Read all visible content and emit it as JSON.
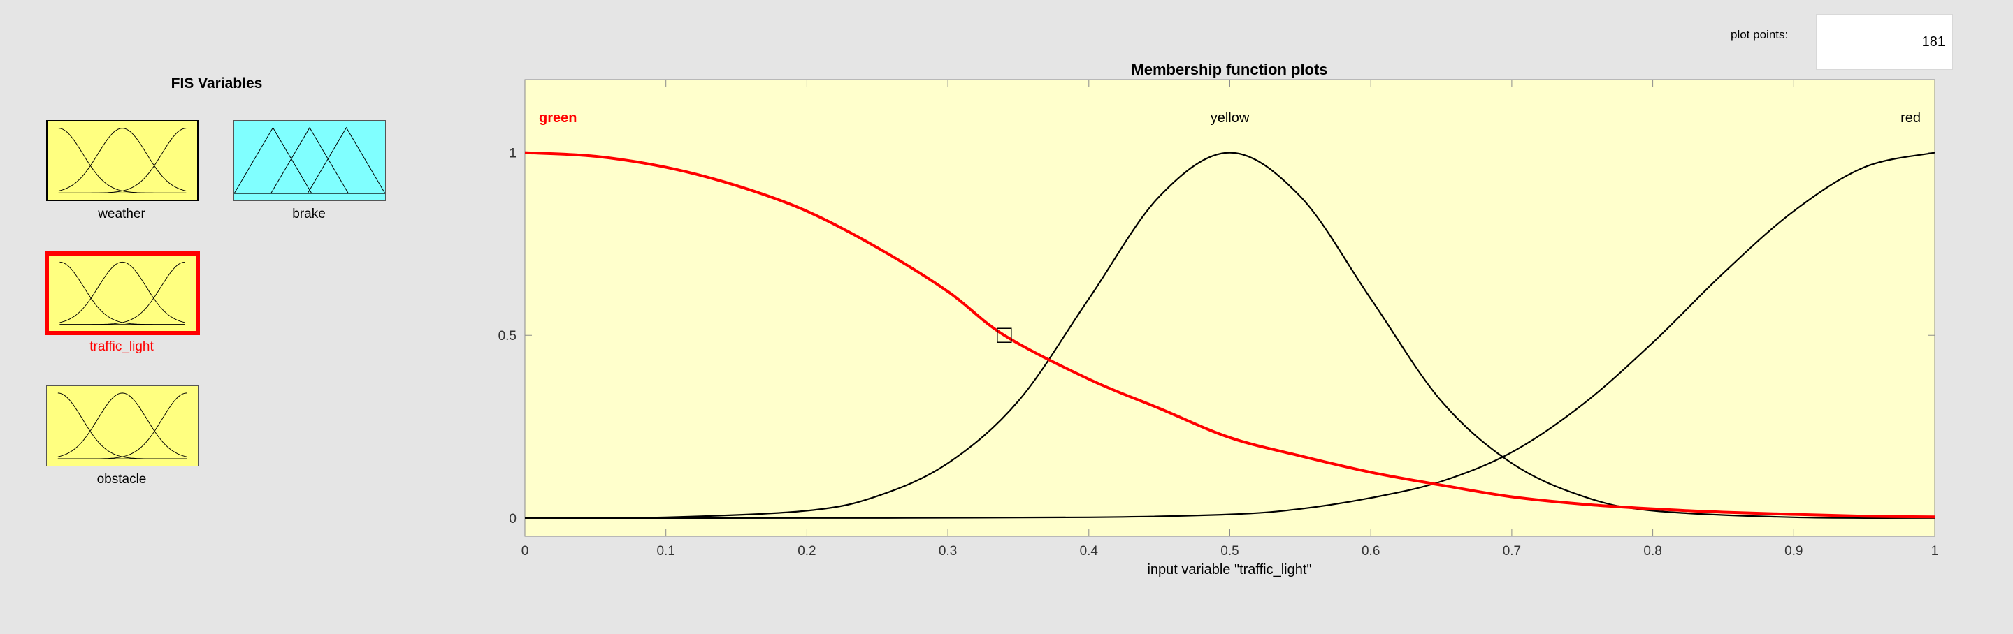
{
  "fis_panel": {
    "title": "FIS Variables",
    "variables": [
      {
        "name": "weather",
        "kind": "input",
        "color": "#ffff80",
        "selected": false
      },
      {
        "name": "brake",
        "kind": "output",
        "color": "#80ffff",
        "selected": false
      },
      {
        "name": "traffic_light",
        "kind": "input",
        "color": "#ffff80",
        "selected": true
      },
      {
        "name": "obstacle",
        "kind": "input",
        "color": "#ffff80",
        "selected": false
      }
    ]
  },
  "plot_points": {
    "label": "plot points:",
    "value": "181"
  },
  "colors": {
    "selected": "#ff0000",
    "plot_bg": "#ffffcc",
    "curve": "#000000"
  },
  "chart_data": {
    "type": "line",
    "title": "Membership function plots",
    "xlabel": "input variable \"traffic_light\"",
    "ylabel": "",
    "xlim": [
      0,
      1
    ],
    "ylim": [
      -0.05,
      1.2
    ],
    "xticks": [
      0,
      0.1,
      0.2,
      0.3,
      0.4,
      0.5,
      0.6,
      0.7,
      0.8,
      0.9,
      1
    ],
    "xtick_labels": [
      "0",
      "0.1",
      "0.2",
      "0.3",
      "0.4",
      "0.5",
      "0.6",
      "0.7",
      "0.8",
      "0.9",
      "1"
    ],
    "yticks": [
      0,
      0.5,
      1
    ],
    "ytick_labels": [
      "0",
      "0.5",
      "1"
    ],
    "grid": false,
    "series": [
      {
        "name": "green",
        "selected": true,
        "x": [
          0,
          0.05,
          0.1,
          0.15,
          0.2,
          0.25,
          0.3,
          0.34,
          0.4,
          0.45,
          0.5,
          0.55,
          0.6,
          0.65,
          0.7,
          0.75,
          0.8,
          0.85,
          0.9,
          0.95,
          1
        ],
        "y": [
          1.0,
          0.99,
          0.96,
          0.91,
          0.84,
          0.74,
          0.62,
          0.5,
          0.38,
          0.3,
          0.22,
          0.17,
          0.125,
          0.09,
          0.058,
          0.038,
          0.025,
          0.016,
          0.01,
          0.005,
          0.003
        ]
      },
      {
        "name": "yellow",
        "selected": false,
        "x": [
          0,
          0.1,
          0.2,
          0.25,
          0.3,
          0.35,
          0.4,
          0.45,
          0.5,
          0.55,
          0.6,
          0.65,
          0.7,
          0.75,
          0.8,
          0.9,
          1
        ],
        "y": [
          0.0,
          0.002,
          0.02,
          0.06,
          0.15,
          0.32,
          0.6,
          0.88,
          1.0,
          0.88,
          0.6,
          0.32,
          0.15,
          0.06,
          0.02,
          0.002,
          0.0
        ]
      },
      {
        "name": "red",
        "selected": false,
        "x": [
          0,
          0.2,
          0.4,
          0.5,
          0.55,
          0.6,
          0.65,
          0.7,
          0.75,
          0.8,
          0.85,
          0.9,
          0.95,
          1
        ],
        "y": [
          0.0,
          0.0,
          0.002,
          0.01,
          0.025,
          0.055,
          0.1,
          0.18,
          0.31,
          0.48,
          0.67,
          0.84,
          0.96,
          1.0
        ]
      }
    ],
    "marker": {
      "x": 0.34,
      "y": 0.5
    }
  }
}
